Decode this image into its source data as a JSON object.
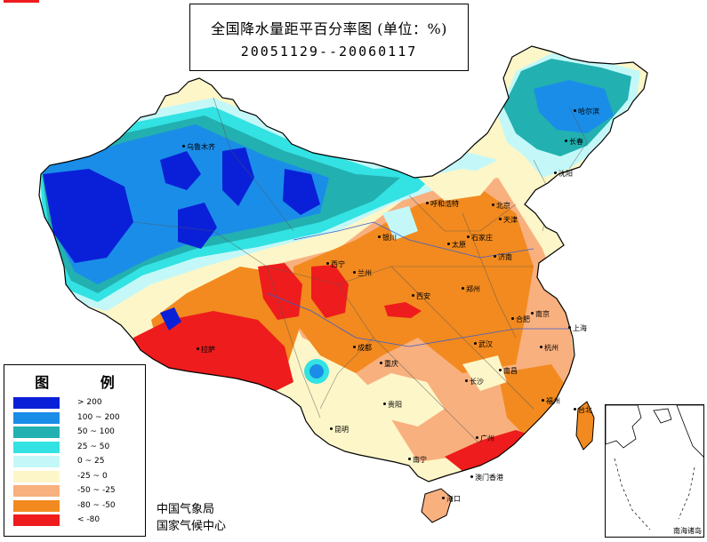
{
  "title": {
    "line1": "全国降水量距平百分率图 (单位：%)",
    "line2": "20051129--20060117"
  },
  "legend": {
    "title": "图 例",
    "items": [
      {
        "label": "> 200",
        "color": "#0a20d8"
      },
      {
        "label": "100 ~ 200",
        "color": "#1a8de8"
      },
      {
        "label": "50 ~ 100",
        "color": "#23b0b0"
      },
      {
        "label": "25 ~ 50",
        "color": "#33e2e2"
      },
      {
        "label": "0 ~ 25",
        "color": "#c4f8f8"
      },
      {
        "label": "-25 ~ 0",
        "color": "#fdf6c8"
      },
      {
        "label": "-50 ~ -25",
        "color": "#f8b07e"
      },
      {
        "label": "-80 ~ -50",
        "color": "#f28a1f"
      },
      {
        "label": "< -80",
        "color": "#ee1c1c"
      }
    ]
  },
  "agency": {
    "line1": "中国气象局",
    "line2": "国家气候中心"
  },
  "inset": {
    "label": "南海诸岛"
  },
  "cities": [
    {
      "name": "乌鲁木齐"
    },
    {
      "name": "哈尔滨"
    },
    {
      "name": "长春"
    },
    {
      "name": "沈阳"
    },
    {
      "name": "呼和浩特"
    },
    {
      "name": "北京"
    },
    {
      "name": "天津"
    },
    {
      "name": "石家庄"
    },
    {
      "name": "太原"
    },
    {
      "name": "济南"
    },
    {
      "name": "银川"
    },
    {
      "name": "西宁"
    },
    {
      "name": "兰州"
    },
    {
      "name": "西安"
    },
    {
      "name": "郑州"
    },
    {
      "name": "合肥"
    },
    {
      "name": "南京"
    },
    {
      "name": "上海"
    },
    {
      "name": "拉萨"
    },
    {
      "name": "成都"
    },
    {
      "name": "重庆"
    },
    {
      "name": "武汉"
    },
    {
      "name": "杭州"
    },
    {
      "name": "长沙"
    },
    {
      "name": "南昌"
    },
    {
      "name": "福州"
    },
    {
      "name": "贵阳"
    },
    {
      "name": "昆明"
    },
    {
      "name": "南宁"
    },
    {
      "name": "广州"
    },
    {
      "name": "台北"
    },
    {
      "name": "澳门香港"
    },
    {
      "name": "海口"
    }
  ]
}
